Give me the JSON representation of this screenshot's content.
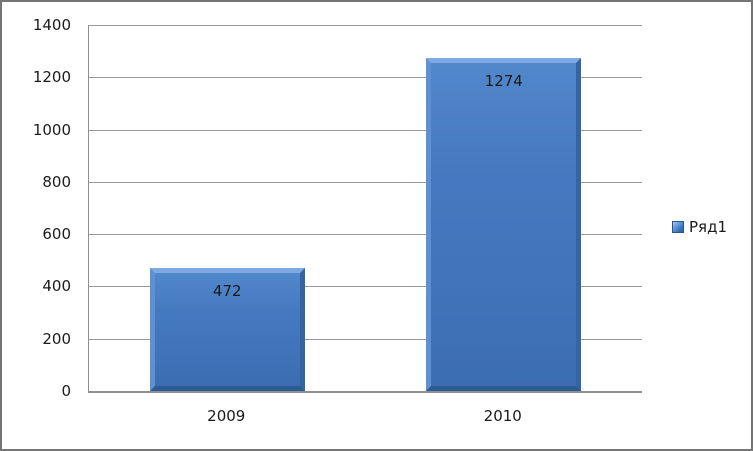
{
  "chart_data": {
    "type": "bar",
    "categories": [
      "2009",
      "2010"
    ],
    "series": [
      {
        "name": "Ряд1",
        "values": [
          472,
          1274
        ]
      }
    ],
    "title": "",
    "xlabel": "",
    "ylabel": "",
    "ylim": [
      0,
      1400
    ],
    "ytick_step": 200,
    "ytick_labels": [
      "0",
      "200",
      "400",
      "600",
      "800",
      "1000",
      "1200",
      "1400"
    ],
    "grid": true,
    "legend_position": "right",
    "data_labels": [
      "472",
      "1274"
    ]
  },
  "colors": {
    "bar_face": "#4377BD",
    "bar_bevel_light": "#7EA9E2",
    "bar_bevel_dark": "#2B5B96",
    "gridline": "#9A9A9A",
    "axis": "#8F8F8F",
    "frame_border": "#757575",
    "text": "#1A1A1A"
  }
}
